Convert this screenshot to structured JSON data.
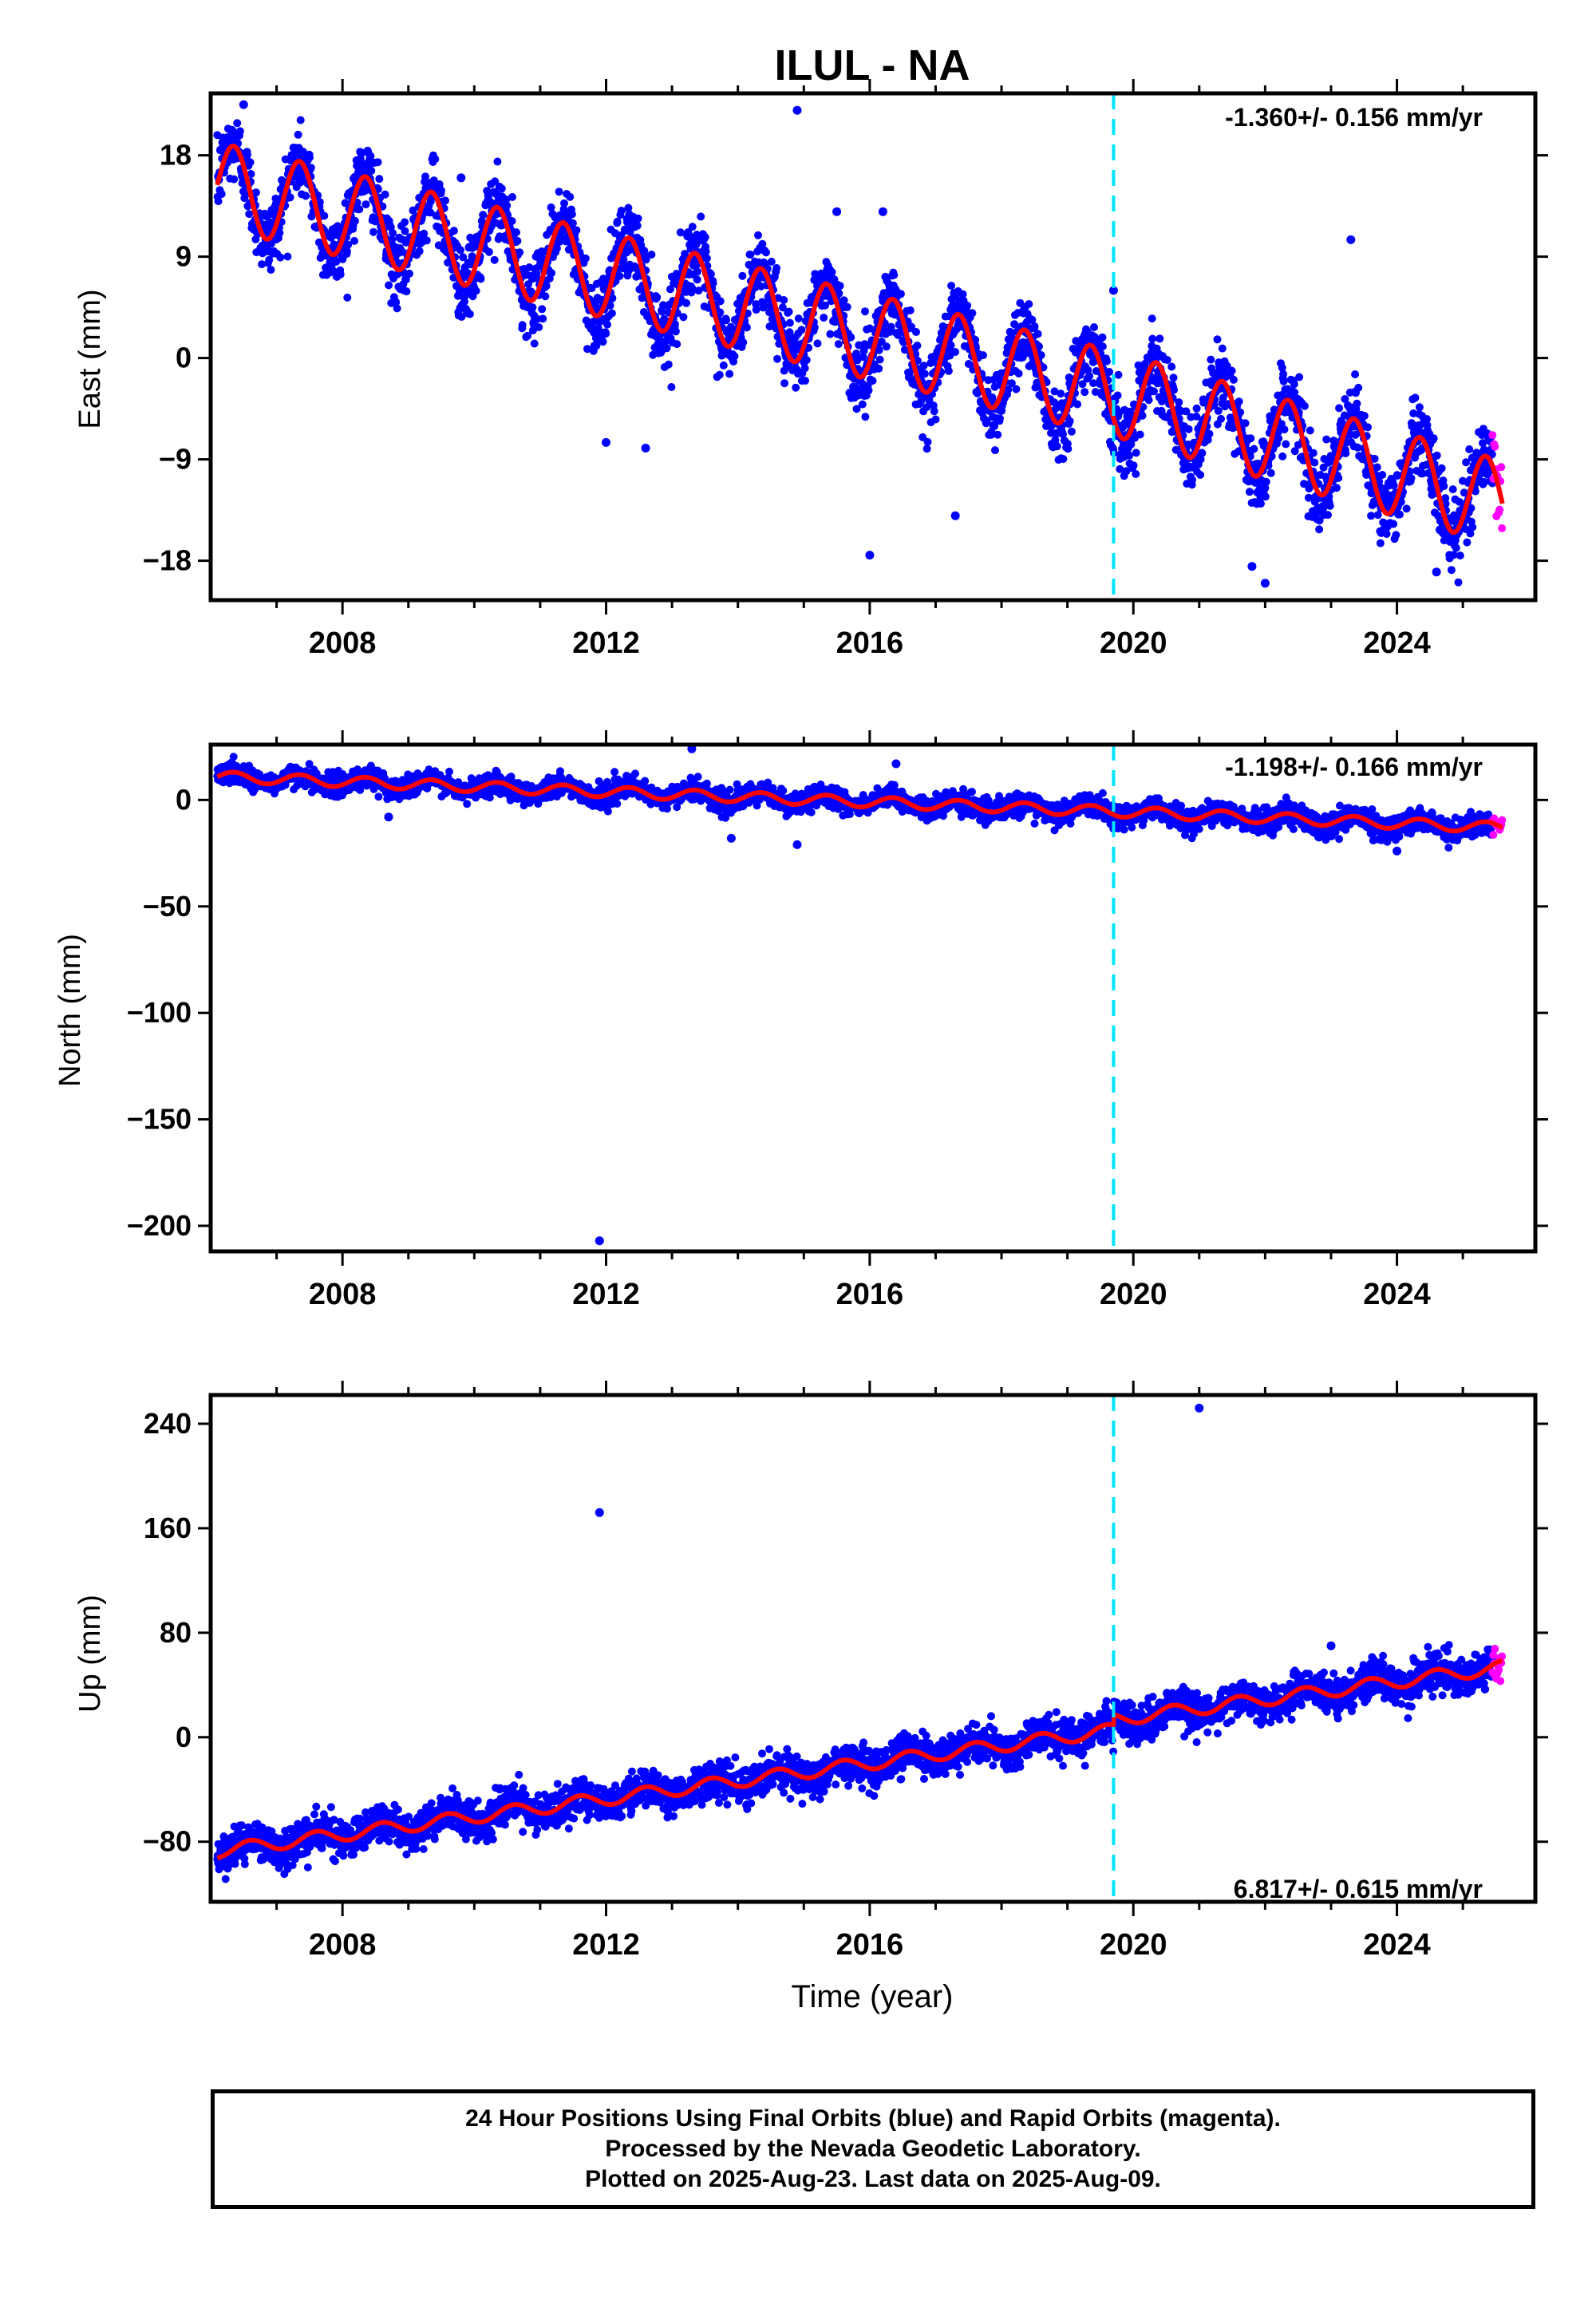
{
  "title": "ILUL - NA",
  "footer": {
    "line1": "24 Hour Positions Using Final Orbits (blue) and Rapid Orbits (magenta).",
    "line2": "Processed by the Nevada Geodetic Laboratory.",
    "line3": "Plotted on 2025-Aug-23. Last data on 2025-Aug-09."
  },
  "colors": {
    "final_orbits": "#0000ff",
    "rapid_orbits": "#ff00ff",
    "model_fit": "#ff0000",
    "equipment_change": "#00e5ff"
  },
  "chart_data": [
    {
      "type": "scatter",
      "component": "east",
      "ylabel": "East (mm)",
      "xlim": [
        2006.0,
        2026.1
      ],
      "ylim": [
        -21.5,
        23.5
      ],
      "yticks": [
        -18,
        -9,
        0,
        9,
        18
      ],
      "ytick_labels": [
        "−18",
        "−9",
        "0",
        "9",
        "18"
      ],
      "xticks": [
        2008,
        2012,
        2016,
        2020,
        2024
      ],
      "xtick_labels": [
        "2008",
        "2012",
        "2016",
        "2020",
        "2024"
      ],
      "rate_label": "-1.360+/- 0.156 mm/yr",
      "rate_label_position": "top-right",
      "grid": false,
      "equipment_change_year": 2019.7,
      "data_start_year": 2006.1,
      "data_end_year": 2025.6,
      "rapid_start_year": 2025.45,
      "model": {
        "intercept_at_2006": 15.5,
        "rate_mm_per_yr": -1.36,
        "annual_amplitude_mm": 3.8,
        "annual_phase_year_fraction": 0.35,
        "rate_change_after_2019_7": -0.3
      },
      "scatter_spread_mm": 1.6,
      "outliers": [
        {
          "x": 2006.5,
          "y": 22.5
        },
        {
          "x": 2009.8,
          "y": 16.0
        },
        {
          "x": 2014.9,
          "y": 22.0
        },
        {
          "x": 2012.0,
          "y": -7.5
        },
        {
          "x": 2016.0,
          "y": -17.5
        },
        {
          "x": 2016.2,
          "y": 13.0
        },
        {
          "x": 2019.7,
          "y": 6.0
        },
        {
          "x": 2023.3,
          "y": 10.5
        },
        {
          "x": 2021.8,
          "y": -18.5
        },
        {
          "x": 2022.0,
          "y": -20.0
        },
        {
          "x": 2024.6,
          "y": -19.0
        },
        {
          "x": 2015.5,
          "y": 13.0
        },
        {
          "x": 2017.3,
          "y": -14.0
        },
        {
          "x": 2012.6,
          "y": -8.0
        }
      ]
    },
    {
      "type": "scatter",
      "component": "north",
      "ylabel": "North (mm)",
      "xlim": [
        2006.0,
        2026.1
      ],
      "ylim": [
        -212,
        26
      ],
      "yticks": [
        -200,
        -150,
        -100,
        -50,
        0
      ],
      "ytick_labels": [
        "−200",
        "−150",
        "−100",
        "−50",
        "0"
      ],
      "xticks": [
        2008,
        2012,
        2016,
        2020,
        2024
      ],
      "xtick_labels": [
        "2008",
        "2012",
        "2016",
        "2020",
        "2024"
      ],
      "rate_label": "-1.198+/- 0.166 mm/yr",
      "rate_label_position": "top-right",
      "grid": false,
      "equipment_change_year": 2019.7,
      "data_start_year": 2006.1,
      "data_end_year": 2025.6,
      "rapid_start_year": 2025.45,
      "model": {
        "intercept_at_2006": 11.0,
        "rate_mm_per_yr": -1.198,
        "annual_amplitude_mm": 2.5,
        "annual_phase_year_fraction": 0.35,
        "rate_change_after_2019_7": -0.1
      },
      "scatter_spread_mm": 2.5,
      "outliers": [
        {
          "x": 2011.9,
          "y": -207
        },
        {
          "x": 2013.3,
          "y": 24
        },
        {
          "x": 2016.4,
          "y": 17
        },
        {
          "x": 2013.9,
          "y": -18
        },
        {
          "x": 2014.9,
          "y": -21
        },
        {
          "x": 2008.7,
          "y": -8
        },
        {
          "x": 2024.0,
          "y": -24
        }
      ]
    },
    {
      "type": "scatter",
      "component": "up",
      "ylabel": "Up (mm)",
      "xlabel": "Time (year)",
      "xlim": [
        2006.0,
        2026.1
      ],
      "ylim": [
        -126,
        262
      ],
      "yticks": [
        -80,
        0,
        80,
        160,
        240
      ],
      "ytick_labels": [
        "−80",
        "0",
        "80",
        "160",
        "240"
      ],
      "xticks": [
        2008,
        2012,
        2016,
        2020,
        2024
      ],
      "xtick_labels": [
        "2008",
        "2012",
        "2016",
        "2020",
        "2024"
      ],
      "rate_label": "6.817+/- 0.615 mm/yr",
      "rate_label_position": "bottom-right",
      "grid": false,
      "equipment_change_year": 2019.7,
      "data_start_year": 2006.1,
      "data_end_year": 2025.6,
      "rapid_start_year": 2025.45,
      "model": {
        "intercept_at_2006": -88.0,
        "rate_mm_per_yr": 6.817,
        "annual_amplitude_mm": 5.0,
        "annual_phase_year_fraction": 0.6,
        "offset_at_2019_7": 8.0
      },
      "scatter_spread_mm": 7.0,
      "outliers": [
        {
          "x": 2011.9,
          "y": 172
        },
        {
          "x": 2021.0,
          "y": 252
        },
        {
          "x": 2023.0,
          "y": 70
        }
      ]
    }
  ]
}
